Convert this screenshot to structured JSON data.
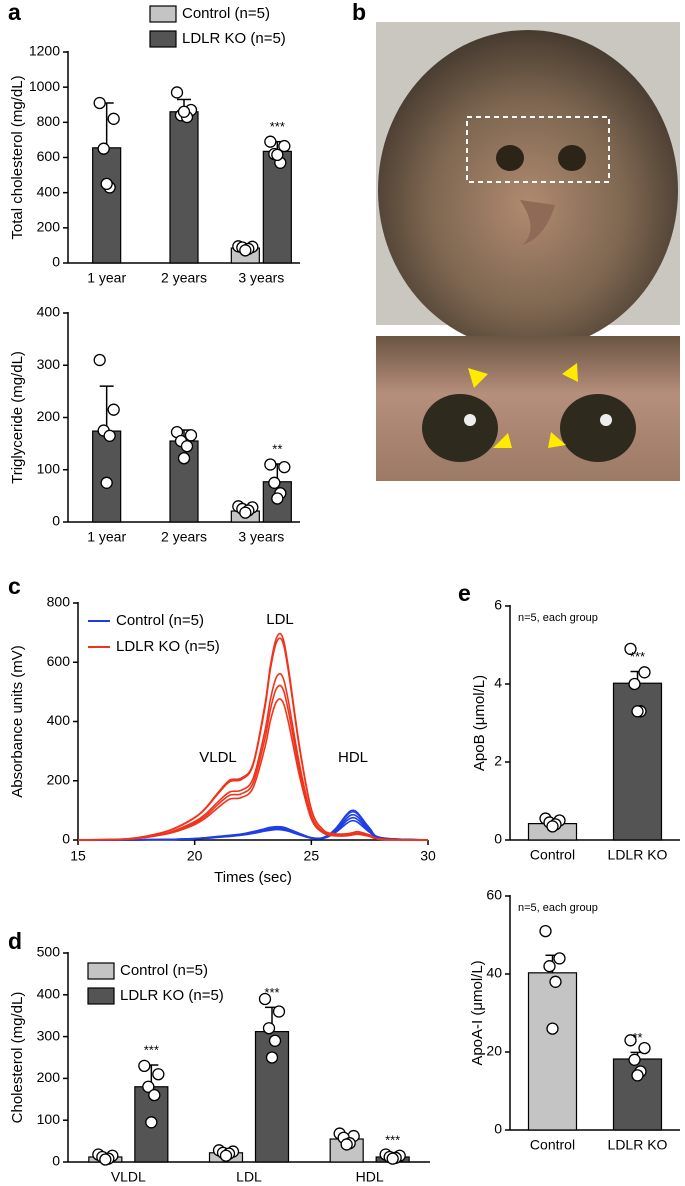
{
  "panel_b": {
    "panel_label": "b"
  },
  "chart_data": [
    {
      "type": "bar",
      "panel_label": "a",
      "ylabel": "Total cholesterol (mg/dL)",
      "legend": "top",
      "categories": [
        "1 year",
        "2 years",
        "3 years"
      ],
      "ylim": [
        0,
        1200
      ],
      "yticks": [
        0,
        200,
        400,
        600,
        800,
        1000,
        1200
      ],
      "series": [
        {
          "name": "Control (n=5)",
          "color": "#c4c4c4",
          "values": [
            null,
            null,
            85
          ],
          "errors": [
            null,
            null,
            12
          ],
          "points": [
            null,
            null,
            [
              95,
              92,
              88,
              80,
              72
            ]
          ]
        },
        {
          "name": "LDLR KO (n=5)",
          "color": "#545454",
          "values": [
            655,
            860,
            635
          ],
          "errors": [
            255,
            70,
            55
          ],
          "points": [
            [
              910,
              820,
              650,
              430,
              450
            ],
            [
              970,
              870,
              840,
              830,
              860
            ],
            [
              690,
              665,
              620,
              570,
              615
            ]
          ],
          "annotations": [
            null,
            null,
            "***"
          ]
        }
      ]
    },
    {
      "type": "bar",
      "ylabel": "Triglyceride (mg/dL)",
      "categories": [
        "1 year",
        "2 years",
        "3 years"
      ],
      "ylim": [
        0,
        400
      ],
      "yticks": [
        0,
        100,
        200,
        300,
        400
      ],
      "series": [
        {
          "color": "#c4c4c4",
          "values": [
            null,
            null,
            21
          ],
          "errors": [
            null,
            null,
            6
          ],
          "points": [
            null,
            null,
            [
              30,
              28,
              25,
              22,
              18
            ]
          ]
        },
        {
          "color": "#545454",
          "values": [
            174,
            155,
            77
          ],
          "errors": [
            86,
            21,
            34
          ],
          "points": [
            [
              310,
              215,
              175,
              165,
              75
            ],
            [
              172,
              166,
              155,
              145,
              122
            ],
            [
              110,
              105,
              75,
              55,
              45
            ]
          ],
          "annotations": [
            null,
            null,
            "**"
          ]
        }
      ]
    },
    {
      "type": "line",
      "panel_label": "c",
      "xlabel": "Times (sec)",
      "ylabel": "Absorbance units (mV)",
      "legend": "upper left",
      "x": [
        15,
        17,
        18,
        19,
        20,
        20.5,
        21,
        21.5,
        22,
        22.5,
        23,
        23.25,
        23.5,
        23.75,
        24,
        24.5,
        25,
        25.5,
        26,
        26.5,
        26.75,
        27,
        27.5,
        28,
        30
      ],
      "xlim": [
        15,
        30
      ],
      "xticks": [
        15,
        20,
        25,
        30
      ],
      "ylim": [
        0,
        800
      ],
      "yticks": [
        0,
        200,
        400,
        600,
        800
      ],
      "annotations": [
        "VLDL",
        "LDL",
        "HDL"
      ],
      "series": [
        {
          "name": "Control (n=5)",
          "color": "#1f3ee6",
          "curves": [
            [
              0,
              0,
              1,
              2,
              5,
              8,
              12,
              16,
              20,
              28,
              38,
              43,
              45,
              44,
              38,
              22,
              8,
              8,
              35,
              85,
              100,
              90,
              40,
              8,
              0
            ],
            [
              0,
              0,
              1,
              2,
              5,
              7,
              11,
              15,
              19,
              26,
              35,
              40,
              42,
              41,
              35,
              20,
              7,
              7,
              33,
              81,
              95,
              86,
              38,
              7,
              0
            ],
            [
              0,
              0,
              1,
              2,
              4,
              7,
              11,
              14,
              18,
              25,
              34,
              38,
              40,
              39,
              34,
              20,
              7,
              7,
              30,
              72,
              85,
              77,
              34,
              7,
              0
            ],
            [
              0,
              0,
              1,
              2,
              4,
              7,
              10,
              13,
              17,
              24,
              32,
              36,
              38,
              37,
              32,
              19,
              7,
              6,
              26,
              64,
              75,
              68,
              30,
              6,
              0
            ],
            [
              0,
              0,
              1,
              2,
              4,
              6,
              9,
              12,
              16,
              22,
              30,
              33,
              35,
              34,
              30,
              17,
              6,
              5,
              23,
              55,
              65,
              59,
              26,
              5,
              0
            ]
          ]
        },
        {
          "name": "LDLR KO (n=5)",
          "color": "#f0341c",
          "curves": [
            [
              0,
              3,
              14,
              35,
              76,
              111,
              160,
              202,
              209,
              257,
              452,
              591,
              681,
              688,
              591,
              313,
              104,
              35,
              21,
              21,
              24,
              28,
              17,
              3,
              0
            ],
            [
              0,
              3,
              14,
              34,
              75,
              109,
              156,
              197,
              204,
              252,
              442,
              578,
              666,
              673,
              578,
              306,
              102,
              34,
              20,
              20,
              24,
              27,
              17,
              3,
              0
            ],
            [
              0,
              3,
              11,
              28,
              62,
              90,
              129,
              162,
              168,
              207,
              364,
              476,
              549,
              554,
              476,
              252,
              84,
              28,
              17,
              17,
              20,
              22,
              14,
              3,
              0
            ],
            [
              0,
              3,
              10,
              26,
              57,
              83,
              120,
              151,
              156,
              192,
              338,
              442,
              510,
              515,
              442,
              234,
              78,
              26,
              16,
              16,
              18,
              21,
              13,
              3,
              0
            ],
            [
              0,
              2,
              10,
              24,
              52,
              76,
              109,
              138,
              143,
              176,
              309,
              404,
              466,
              470,
              404,
              214,
              71,
              24,
              14,
              14,
              17,
              19,
              12,
              2,
              0
            ]
          ]
        }
      ]
    },
    {
      "type": "bar",
      "panel_label": "d",
      "ylabel": "Cholesterol (mg/dL)",
      "legend": "upper left",
      "categories": [
        "VLDL",
        "LDL",
        "HDL"
      ],
      "ylim": [
        0,
        500
      ],
      "yticks": [
        0,
        100,
        200,
        300,
        400,
        500
      ],
      "series": [
        {
          "name": "Control (n=5)",
          "color": "#c4c4c4",
          "values": [
            12,
            22,
            55
          ],
          "errors": [
            5,
            5,
            10
          ],
          "points": [
            [
              18,
              15,
              12,
              8,
              6
            ],
            [
              28,
              25,
              22,
              20,
              15
            ],
            [
              68,
              62,
              58,
              45,
              42
            ]
          ]
        },
        {
          "name": "LDLR KO (n=5)",
          "color": "#545454",
          "values": [
            180,
            312,
            12
          ],
          "errors": [
            52,
            58,
            4
          ],
          "points": [
            [
              230,
              210,
              180,
              160,
              95
            ],
            [
              390,
              360,
              320,
              290,
              250
            ],
            [
              18,
              15,
              12,
              10,
              8
            ]
          ],
          "annotations": [
            "***",
            "***",
            "***"
          ]
        }
      ]
    },
    {
      "type": "bar",
      "panel_label": "e",
      "note": "n=5, each group",
      "ylabel": "ApoB (μmol/L)",
      "categories": [
        "Control",
        "LDLR KO"
      ],
      "ylim": [
        0,
        6
      ],
      "yticks": [
        0,
        2,
        4,
        6
      ],
      "values": [
        0.42,
        4.02
      ],
      "colors": [
        "#c4c4c4",
        "#545454"
      ],
      "errors": [
        0.05,
        0.3
      ],
      "points": [
        [
          0.55,
          0.5,
          0.45,
          0.4,
          0.35
        ],
        [
          4.9,
          4.3,
          4.0,
          3.3,
          3.3
        ]
      ],
      "annotations": [
        null,
        "***"
      ]
    },
    {
      "type": "bar",
      "note": "n=5, each group",
      "ylabel": "ApoA-I (μmol/L)",
      "categories": [
        "Control",
        "LDLR KO"
      ],
      "ylim": [
        0,
        60
      ],
      "yticks": [
        0,
        20,
        40,
        60
      ],
      "values": [
        40.3,
        18.2
      ],
      "colors": [
        "#c4c4c4",
        "#545454"
      ],
      "errors": [
        4.5,
        1.7
      ],
      "points": [
        [
          51,
          44,
          42,
          38,
          26
        ],
        [
          23,
          21,
          18,
          15,
          14
        ]
      ],
      "annotations": [
        null,
        "**"
      ]
    }
  ]
}
